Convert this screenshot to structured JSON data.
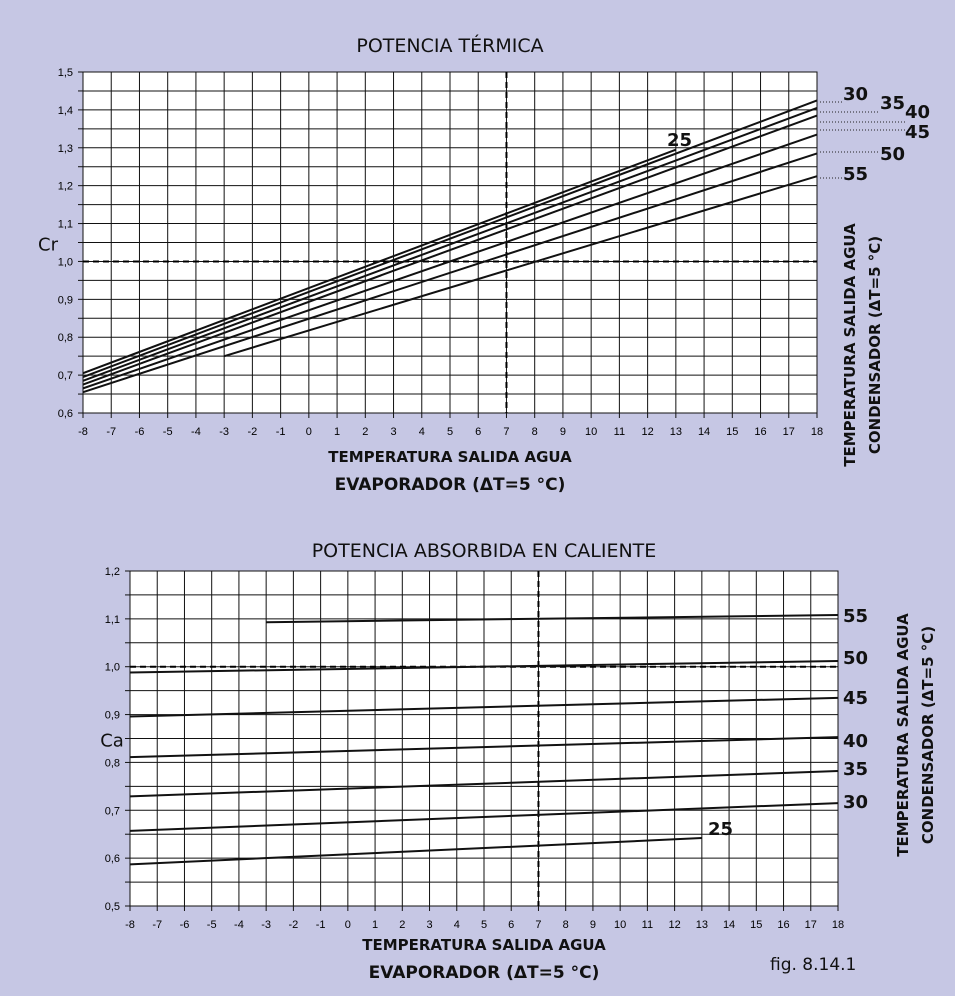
{
  "figure_label": "fig. 8.14.1",
  "colors": {
    "background": "#c6c7e4",
    "plot_background": "#ffffff",
    "line": "#111111",
    "grid": "#111111"
  },
  "chart_data": [
    {
      "type": "line",
      "title": "POTENCIA TÉRMICA",
      "ylabel": "Cr",
      "xlabel_lines": [
        "TEMPERATURA SALIDA AGUA",
        "EVAPORADOR (ΔT=5 °C)"
      ],
      "right_label_lines": [
        "TEMPERATURA SALIDA AGUA",
        "CONDENSADOR (ΔT=5 °C)"
      ],
      "xlim": [
        -8,
        18
      ],
      "ylim": [
        0.6,
        1.5
      ],
      "x_ticks": [
        "-8",
        "-7",
        "-6",
        "-5",
        "-4",
        "-3",
        "-2",
        "-1",
        "0",
        "1",
        "2",
        "3",
        "4",
        "5",
        "6",
        "7",
        "8",
        "9",
        "10",
        "11",
        "12",
        "13",
        "14",
        "15",
        "16",
        "17",
        "18"
      ],
      "y_ticks": [
        "0,6",
        "0,7",
        "0,8",
        "0,9",
        "1,0",
        "1,1",
        "1,2",
        "1,3",
        "1,4",
        "1,5"
      ],
      "grid": true,
      "reference_lines": {
        "x": 7,
        "y": 1.0
      },
      "series": [
        {
          "name": "25",
          "x": [
            -8,
            13
          ],
          "y": [
            0.705,
            1.295
          ]
        },
        {
          "name": "30",
          "x": [
            -8,
            18
          ],
          "y": [
            0.695,
            1.425
          ]
        },
        {
          "name": "35",
          "x": [
            -8,
            18
          ],
          "y": [
            0.685,
            1.405
          ]
        },
        {
          "name": "40",
          "x": [
            -8,
            18
          ],
          "y": [
            0.675,
            1.385
          ]
        },
        {
          "name": "45",
          "x": [
            -8,
            18
          ],
          "y": [
            0.665,
            1.335
          ]
        },
        {
          "name": "50",
          "x": [
            -8,
            18
          ],
          "y": [
            0.655,
            1.285
          ]
        },
        {
          "name": "55",
          "x": [
            -3,
            18
          ],
          "y": [
            0.75,
            1.225
          ]
        }
      ]
    },
    {
      "type": "line",
      "title": "POTENCIA ABSORBIDA EN CALIENTE",
      "ylabel": "Ca",
      "xlabel_lines": [
        "TEMPERATURA SALIDA AGUA",
        "EVAPORADOR (ΔT=5 °C)"
      ],
      "right_label_lines": [
        "TEMPERATURA SALIDA AGUA",
        "CONDENSADOR (ΔT=5 °C)"
      ],
      "xlim": [
        -8,
        18
      ],
      "ylim": [
        0.5,
        1.2
      ],
      "x_ticks": [
        "-8",
        "-7",
        "-6",
        "-5",
        "-4",
        "-3",
        "-2",
        "-1",
        "0",
        "1",
        "2",
        "3",
        "4",
        "5",
        "6",
        "7",
        "8",
        "9",
        "10",
        "11",
        "12",
        "13",
        "14",
        "15",
        "16",
        "17",
        "18"
      ],
      "y_ticks": [
        "0,5",
        "0,6",
        "0,7",
        "0,8",
        "0,9",
        "1,0",
        "1,1",
        "1,2"
      ],
      "grid": true,
      "reference_lines": {
        "x": 7,
        "y": 1.0
      },
      "series": [
        {
          "name": "25",
          "x": [
            -8,
            13
          ],
          "y": [
            0.587,
            0.642
          ]
        },
        {
          "name": "30",
          "x": [
            -8,
            18
          ],
          "y": [
            0.657,
            0.715
          ]
        },
        {
          "name": "35",
          "x": [
            -8,
            18
          ],
          "y": [
            0.729,
            0.782
          ]
        },
        {
          "name": "40",
          "x": [
            -8,
            18
          ],
          "y": [
            0.811,
            0.853
          ]
        },
        {
          "name": "45",
          "x": [
            -8,
            18
          ],
          "y": [
            0.896,
            0.935
          ]
        },
        {
          "name": "50",
          "x": [
            -8,
            18
          ],
          "y": [
            0.988,
            1.012
          ]
        },
        {
          "name": "55",
          "x": [
            -3,
            18
          ],
          "y": [
            1.093,
            1.108
          ]
        }
      ]
    }
  ]
}
